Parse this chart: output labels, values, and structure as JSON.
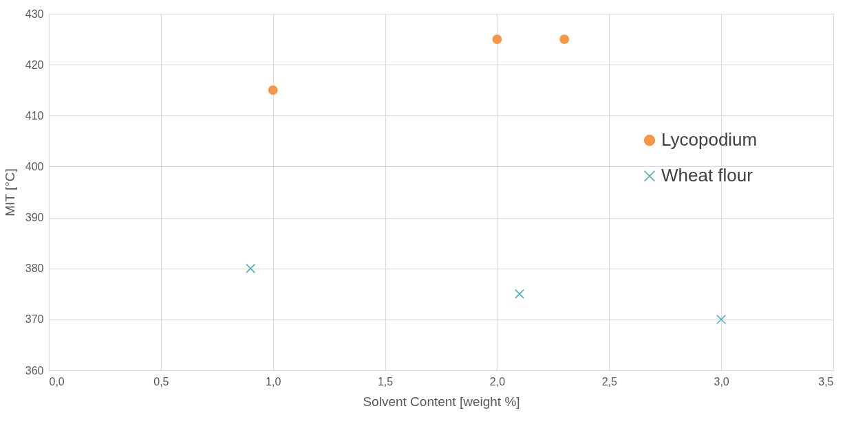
{
  "chart_data": {
    "type": "scatter",
    "xlabel": "Solvent Content [weight %]",
    "ylabel": "MIT [°C]",
    "series": [
      {
        "name": "Lycopodium",
        "color": "#f79646",
        "marker": "circle",
        "x": [
          1.0,
          2.0,
          2.3
        ],
        "values": [
          415,
          425,
          425
        ]
      },
      {
        "name": "Wheat flour",
        "color": "#4bacc6",
        "marker": "cross",
        "x": [
          0.9,
          2.1,
          3.0
        ],
        "values": [
          380,
          375,
          370
        ]
      }
    ],
    "xlim": [
      0,
      3.5
    ],
    "xticks": [
      {
        "value": 0,
        "label": "0,0"
      },
      {
        "value": 0.5,
        "label": "0,5"
      },
      {
        "value": 1,
        "label": "1,0"
      },
      {
        "value": 1.5,
        "label": "1,5"
      },
      {
        "value": 2,
        "label": "2,0"
      },
      {
        "value": 2.5,
        "label": "2,5"
      },
      {
        "value": 3,
        "label": "3,0"
      },
      {
        "value": 3.5,
        "label": "3,5"
      }
    ],
    "ylim": [
      360,
      430
    ],
    "yticks": [
      360,
      370,
      380,
      390,
      400,
      410,
      420,
      430
    ],
    "grid": true,
    "legend": "right"
  }
}
